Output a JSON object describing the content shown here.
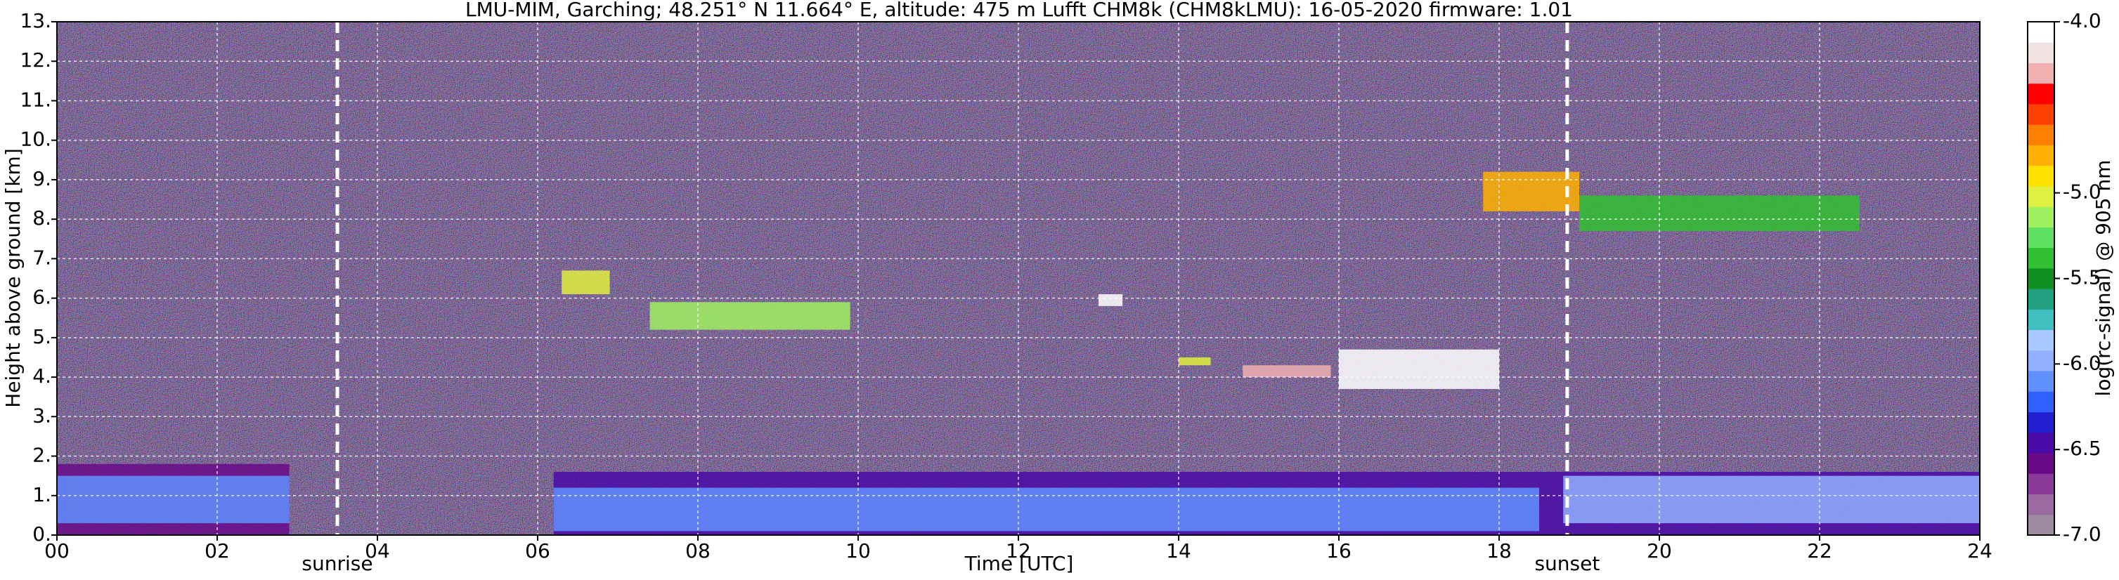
{
  "chart_data": {
    "type": "heatmap",
    "title": "LMU-MIM, Garching; 48.251° N 11.664° E, altitude: 475 m    Lufft CHM8k (CHM8kLMU): 16-05-2020    firmware: 1.01",
    "xlabel": "Time [UTC]",
    "ylabel": "Height above ground [km]",
    "clabel": "log(rc-signal) @ 905 nm",
    "xlim": [
      0,
      24
    ],
    "ylim": [
      0,
      13
    ],
    "clim": [
      -7,
      -4
    ],
    "xticks": [
      {
        "value": 0,
        "label": "00"
      },
      {
        "value": 2,
        "label": "02"
      },
      {
        "value": 4,
        "label": "04"
      },
      {
        "value": 6,
        "label": "06"
      },
      {
        "value": 8,
        "label": "08"
      },
      {
        "value": 10,
        "label": "10"
      },
      {
        "value": 12,
        "label": "12"
      },
      {
        "value": 14,
        "label": "14"
      },
      {
        "value": 16,
        "label": "16"
      },
      {
        "value": 18,
        "label": "18"
      },
      {
        "value": 20,
        "label": "20"
      },
      {
        "value": 22,
        "label": "22"
      },
      24
    ],
    "yticks": [
      {
        "value": 0,
        "label": "0."
      },
      {
        "value": 1,
        "label": "1."
      },
      {
        "value": 2,
        "label": "2."
      },
      {
        "value": 3,
        "label": "3."
      },
      {
        "value": 4,
        "label": "4."
      },
      {
        "value": 5,
        "label": "5."
      },
      {
        "value": 6,
        "label": "6."
      },
      {
        "value": 7,
        "label": "7."
      },
      {
        "value": 8,
        "label": "8."
      },
      {
        "value": 9,
        "label": "9."
      },
      {
        "value": 10,
        "label": "10."
      },
      {
        "value": 11,
        "label": "11."
      },
      {
        "value": 12,
        "label": "12."
      },
      {
        "value": 13,
        "label": "13."
      }
    ],
    "cticks": [
      {
        "value": -4,
        "label": "-4.0"
      },
      {
        "value": -5,
        "label": "-5.0"
      },
      {
        "value": -5.5,
        "label": "-5.5"
      },
      {
        "value": -6,
        "label": "-6.0"
      },
      {
        "value": -6.5,
        "label": "-6.5"
      },
      {
        "value": -7,
        "label": "-7.0"
      }
    ],
    "grid": true,
    "colormap": [
      "#a08aa0",
      "#9a6aa0",
      "#8a3a9a",
      "#6a0a8a",
      "#4a0aa8",
      "#2020d0",
      "#3060ff",
      "#6090ff",
      "#90b0ff",
      "#a8c8ff",
      "#40c0c0",
      "#20a080",
      "#109020",
      "#30c030",
      "#60e060",
      "#a0f060",
      "#e0f040",
      "#ffe000",
      "#ffb000",
      "#ff8000",
      "#ff4000",
      "#ff0000",
      "#f0b0b0",
      "#f0e0e0",
      "#ffffff"
    ],
    "layers": [
      {
        "x": [
          0,
          2.9
        ],
        "y": [
          0,
          1.8
        ],
        "value": -6.6
      },
      {
        "x": [
          0,
          2.9
        ],
        "y": [
          0.3,
          1.5
        ],
        "value": -6.1
      },
      {
        "x": [
          6.2,
          24
        ],
        "y": [
          0,
          1.6
        ],
        "value": -6.5
      },
      {
        "x": [
          6.2,
          18.5
        ],
        "y": [
          0.1,
          1.2
        ],
        "value": -6.1
      },
      {
        "x": [
          18.8,
          24
        ],
        "y": [
          0.3,
          1.5
        ],
        "value": -6.0
      },
      {
        "x": [
          6.3,
          6.9
        ],
        "y": [
          6.1,
          6.7
        ],
        "value": -5.0
      },
      {
        "x": [
          7.4,
          9.9
        ],
        "y": [
          5.2,
          5.9
        ],
        "value": -5.1
      },
      {
        "x": [
          13.0,
          13.3
        ],
        "y": [
          5.8,
          6.1
        ],
        "value": -4.0
      },
      {
        "x": [
          14.0,
          14.4
        ],
        "y": [
          4.3,
          4.5
        ],
        "value": -5.0
      },
      {
        "x": [
          14.8,
          15.9
        ],
        "y": [
          4.0,
          4.3
        ],
        "value": -4.3
      },
      {
        "x": [
          16.0,
          18.0
        ],
        "y": [
          3.7,
          4.7
        ],
        "value": -4.0
      },
      {
        "x": [
          17.8,
          19.0
        ],
        "y": [
          8.2,
          9.2
        ],
        "value": -4.8
      },
      {
        "x": [
          19.0,
          22.5
        ],
        "y": [
          7.7,
          8.6
        ],
        "value": -5.4
      }
    ],
    "annotations": [
      {
        "x": 3.5,
        "label": "sunrise"
      },
      {
        "x": 18.85,
        "label": "sunset"
      }
    ]
  }
}
